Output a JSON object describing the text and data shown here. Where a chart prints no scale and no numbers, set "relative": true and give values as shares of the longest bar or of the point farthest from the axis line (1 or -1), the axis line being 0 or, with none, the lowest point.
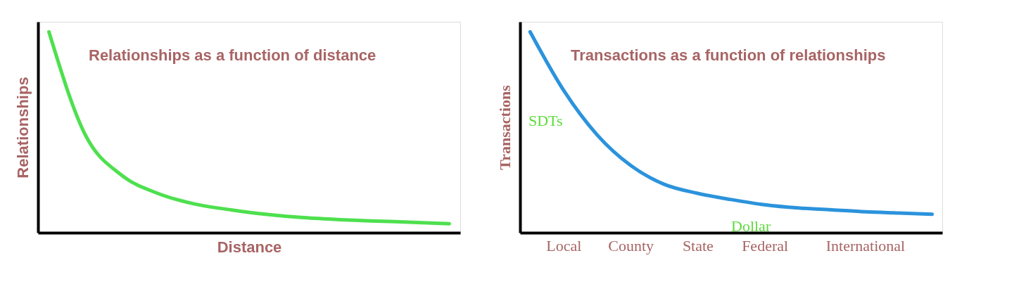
{
  "chart_data": [
    {
      "type": "line",
      "title": "Relationships as a function of distance",
      "xlabel": "Distance",
      "ylabel": "Relationships",
      "relative": true,
      "tick_labels": false,
      "grid": false,
      "legend": false,
      "marker": "none",
      "line_style": "solid",
      "categories": [
        null,
        null,
        null,
        null,
        null,
        null,
        null,
        null,
        null,
        null,
        null,
        null
      ],
      "series": [
        {
          "color": "#4ee04e",
          "values": [
            1.0,
            0.487,
            0.286,
            0.195,
            0.143,
            0.114,
            0.091,
            0.075,
            0.065,
            0.058,
            0.052,
            0.045
          ]
        }
      ]
    },
    {
      "type": "line",
      "title": "Transactions as a function of relationships",
      "ylabel": "Transactions",
      "relative": true,
      "tick_labels": "x",
      "grid": false,
      "legend": false,
      "marker": "none",
      "line_style": "solid",
      "categories": [
        null,
        "Local",
        null,
        "County",
        null,
        "State",
        null,
        "Federal",
        null,
        null,
        "International",
        null,
        null
      ],
      "series": [
        {
          "color": "#2b93dc",
          "values": [
            1.0,
            0.709,
            0.487,
            0.335,
            0.241,
            0.196,
            0.165,
            0.139,
            0.123,
            0.114,
            0.104,
            0.098,
            0.092
          ]
        }
      ],
      "annotations": [
        "SDTs",
        "Dollar"
      ]
    }
  ]
}
